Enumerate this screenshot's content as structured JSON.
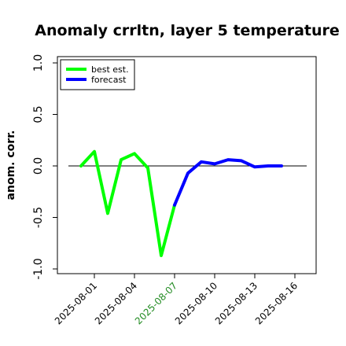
{
  "chart_data": {
    "type": "line",
    "title": "Anomaly crrltn, layer 5 temperature",
    "ylabel": "anom. corr.",
    "xlabel": "",
    "ylim": [
      -1.05,
      1.05
    ],
    "yticks": [
      -1.0,
      -0.5,
      0.0,
      0.5,
      1.0
    ],
    "ytick_labels": [
      "-1.0",
      "-0.5",
      "0.0",
      "0.5",
      "1.0"
    ],
    "x_tick_labels": [
      {
        "label": "2025-08-01",
        "color": "#000000"
      },
      {
        "label": "2025-08-04",
        "color": "#000000"
      },
      {
        "label": "2025-08-07",
        "color": "#228B22"
      },
      {
        "label": "2025-08-10",
        "color": "#000000"
      },
      {
        "label": "2025-08-13",
        "color": "#000000"
      },
      {
        "label": "2025-08-16",
        "color": "#000000"
      }
    ],
    "reference_line": 0.0,
    "legend": {
      "position": "top-left"
    },
    "series": [
      {
        "name": "best est.",
        "color": "#00ff00",
        "x": [
          "2025-07-31",
          "2025-08-01",
          "2025-08-02",
          "2025-08-03",
          "2025-08-04",
          "2025-08-05",
          "2025-08-06",
          "2025-08-07"
        ],
        "y": [
          0.0,
          0.14,
          -0.46,
          0.06,
          0.12,
          -0.02,
          -0.87,
          -0.38
        ]
      },
      {
        "name": "forecast",
        "color": "#0000ff",
        "x": [
          "2025-08-07",
          "2025-08-08",
          "2025-08-09",
          "2025-08-10",
          "2025-08-11",
          "2025-08-12",
          "2025-08-13",
          "2025-08-14",
          "2025-08-15"
        ],
        "y": [
          -0.38,
          -0.07,
          0.04,
          0.02,
          0.06,
          0.05,
          -0.01,
          0.0,
          0.0
        ]
      }
    ]
  }
}
